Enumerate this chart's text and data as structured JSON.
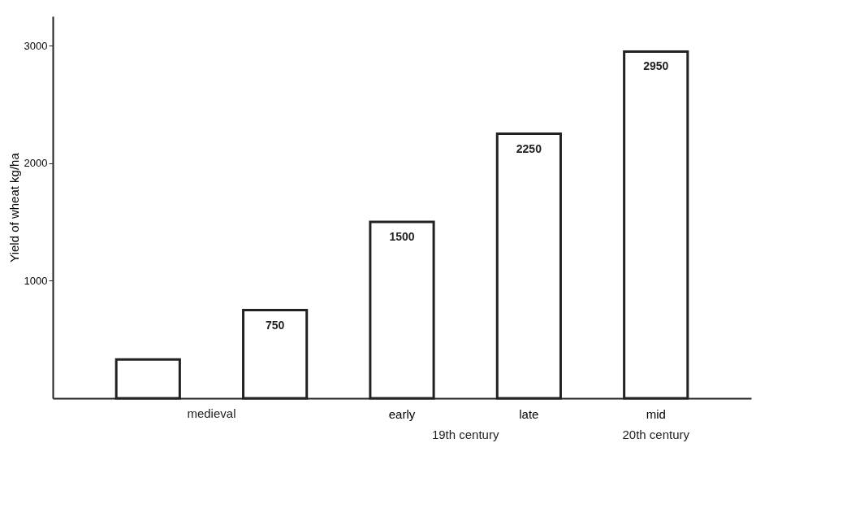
{
  "chart_data": {
    "type": "bar",
    "ylabel": "Yield of wheat kg/ha",
    "categories": [
      null,
      null,
      "early",
      "late",
      "mid"
    ],
    "values": [
      330,
      750,
      1500,
      2250,
      2950
    ],
    "value_labels": [
      null,
      "750",
      "1500",
      "2250",
      "2950"
    ],
    "color": "#ffffff",
    "ylim": [
      0,
      3250
    ],
    "yticks": [
      1000,
      2000,
      3000
    ],
    "grid": false,
    "annotations": [
      "medieval",
      "19th century",
      "20th century"
    ]
  }
}
